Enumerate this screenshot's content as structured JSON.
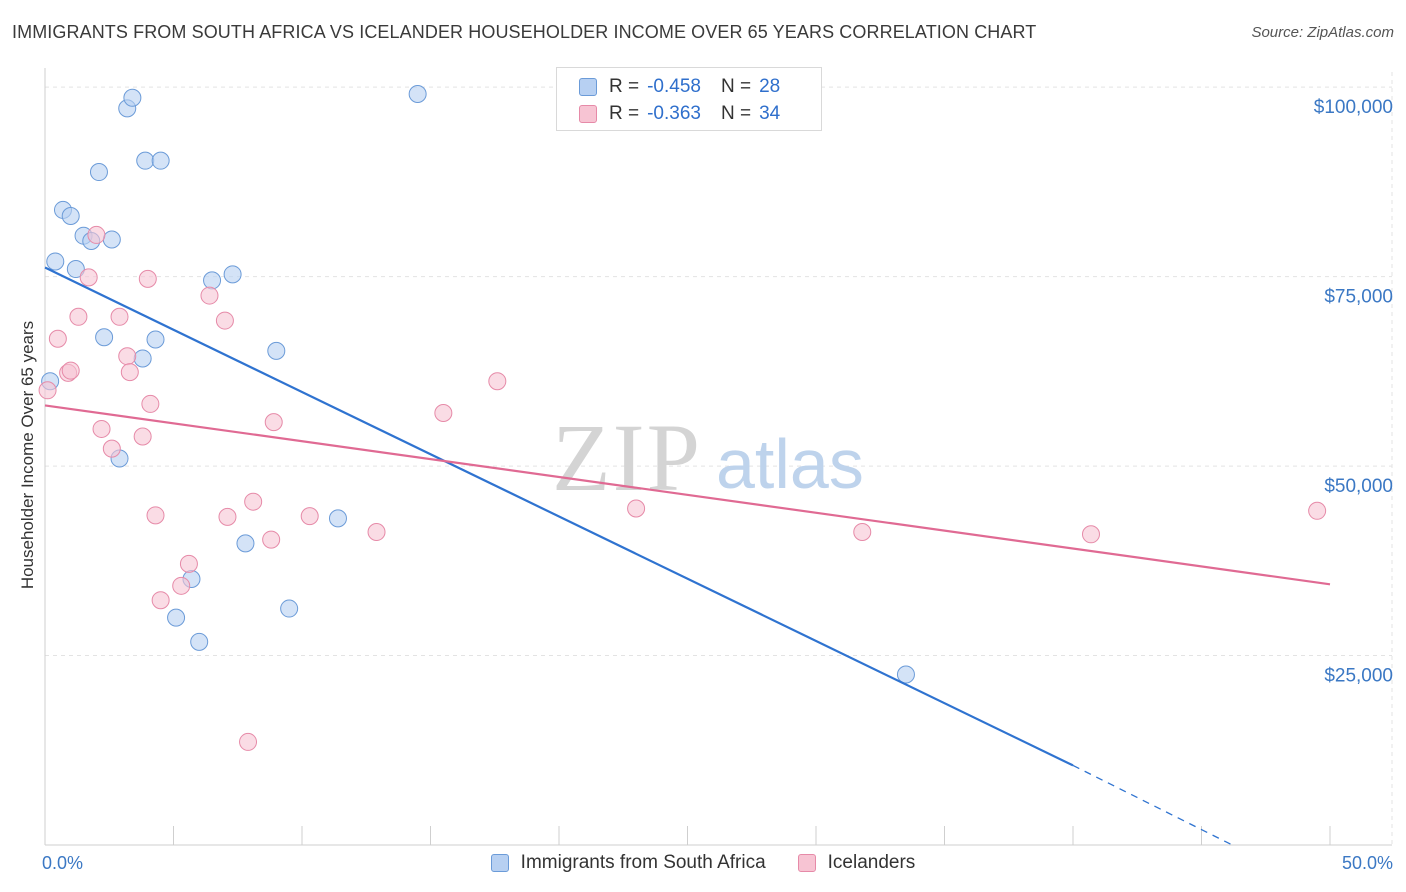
{
  "header": {
    "title": "IMMIGRANTS FROM SOUTH AFRICA VS ICELANDER HOUSEHOLDER INCOME OVER 65 YEARS CORRELATION CHART",
    "source": "Source: ZipAtlas.com"
  },
  "stats": {
    "blue": {
      "r_label": "R =",
      "r_value": "-0.458",
      "n_label": "N =",
      "n_value": "28"
    },
    "pink": {
      "r_label": "R =",
      "r_value": "-0.363",
      "n_label": "N =",
      "n_value": "34"
    }
  },
  "legend": {
    "blue_label": "Immigrants from South Africa",
    "pink_label": "Icelanders"
  },
  "watermark": {
    "zip": "ZIP",
    "atlas": "atlas"
  },
  "colors": {
    "blue_fill": "#b7d0f2",
    "blue_stroke": "#6b9bd8",
    "blue_line": "#2f73d0",
    "pink_fill": "#f7c4d3",
    "pink_stroke": "#e68aa8",
    "pink_line": "#e06a93",
    "tick_text": "#3b78c4",
    "grid": "#e3e3e3"
  },
  "chart_data": {
    "type": "scatter",
    "title": "IMMIGRANTS FROM SOUTH AFRICA VS ICELANDER HOUSEHOLDER INCOME OVER 65 YEARS CORRELATION CHART",
    "xlabel": "",
    "ylabel": "Householder Income Over 65 years",
    "xlim": [
      0,
      50
    ],
    "ylim": [
      0,
      102000
    ],
    "x_tick_labels": [
      {
        "value": 0,
        "label": "0.0%"
      },
      {
        "value": 50,
        "label": "50.0%"
      }
    ],
    "y_ticks": [
      {
        "value": 25000,
        "label": "$25,000"
      },
      {
        "value": 50000,
        "label": "$50,000"
      },
      {
        "value": 75000,
        "label": "$75,000"
      },
      {
        "value": 100000,
        "label": "$100,000"
      }
    ],
    "series": [
      {
        "name": "Immigrants from South Africa",
        "color": "blue",
        "points": [
          [
            0.2,
            61200
          ],
          [
            0.4,
            77000
          ],
          [
            0.7,
            83800
          ],
          [
            1.0,
            83000
          ],
          [
            1.2,
            76000
          ],
          [
            1.5,
            80400
          ],
          [
            1.8,
            79700
          ],
          [
            2.1,
            88800
          ],
          [
            2.3,
            67000
          ],
          [
            2.6,
            79900
          ],
          [
            2.9,
            51000
          ],
          [
            3.2,
            97200
          ],
          [
            3.4,
            98600
          ],
          [
            3.8,
            64200
          ],
          [
            3.9,
            90300
          ],
          [
            4.3,
            66700
          ],
          [
            4.5,
            90300
          ],
          [
            5.1,
            30000
          ],
          [
            5.7,
            35100
          ],
          [
            6.0,
            26800
          ],
          [
            6.5,
            74500
          ],
          [
            7.8,
            39800
          ],
          [
            7.3,
            75300
          ],
          [
            9.0,
            65200
          ],
          [
            9.5,
            31200
          ],
          [
            11.4,
            43100
          ],
          [
            14.5,
            99100
          ],
          [
            33.5,
            22500
          ]
        ],
        "trend": {
          "x_start": 0,
          "y_start": 76200,
          "x_solid_end": 40,
          "y_solid_end": 10500,
          "x_dash_end": 46.2,
          "y_dash_end": 0
        }
      },
      {
        "name": "Icelanders",
        "color": "pink",
        "points": [
          [
            0.1,
            60000
          ],
          [
            0.5,
            66800
          ],
          [
            0.9,
            62300
          ],
          [
            1.0,
            62600
          ],
          [
            1.3,
            69700
          ],
          [
            1.7,
            74900
          ],
          [
            2.0,
            80500
          ],
          [
            2.2,
            54900
          ],
          [
            2.6,
            52300
          ],
          [
            2.9,
            69700
          ],
          [
            3.2,
            64500
          ],
          [
            3.3,
            62400
          ],
          [
            3.8,
            53900
          ],
          [
            4.0,
            74700
          ],
          [
            4.1,
            58200
          ],
          [
            4.3,
            43500
          ],
          [
            4.5,
            32300
          ],
          [
            5.3,
            34200
          ],
          [
            5.6,
            37100
          ],
          [
            6.4,
            72500
          ],
          [
            7.0,
            69200
          ],
          [
            7.1,
            43300
          ],
          [
            7.9,
            13600
          ],
          [
            8.1,
            45300
          ],
          [
            8.8,
            40300
          ],
          [
            8.9,
            55800
          ],
          [
            10.3,
            43400
          ],
          [
            12.9,
            41300
          ],
          [
            15.5,
            57000
          ],
          [
            17.6,
            61200
          ],
          [
            23.0,
            44400
          ],
          [
            31.8,
            41300
          ],
          [
            40.7,
            41000
          ],
          [
            49.5,
            44100
          ]
        ],
        "trend": {
          "x_start": 0,
          "y_start": 58000,
          "x_end": 50,
          "y_end": 34400
        }
      }
    ]
  }
}
